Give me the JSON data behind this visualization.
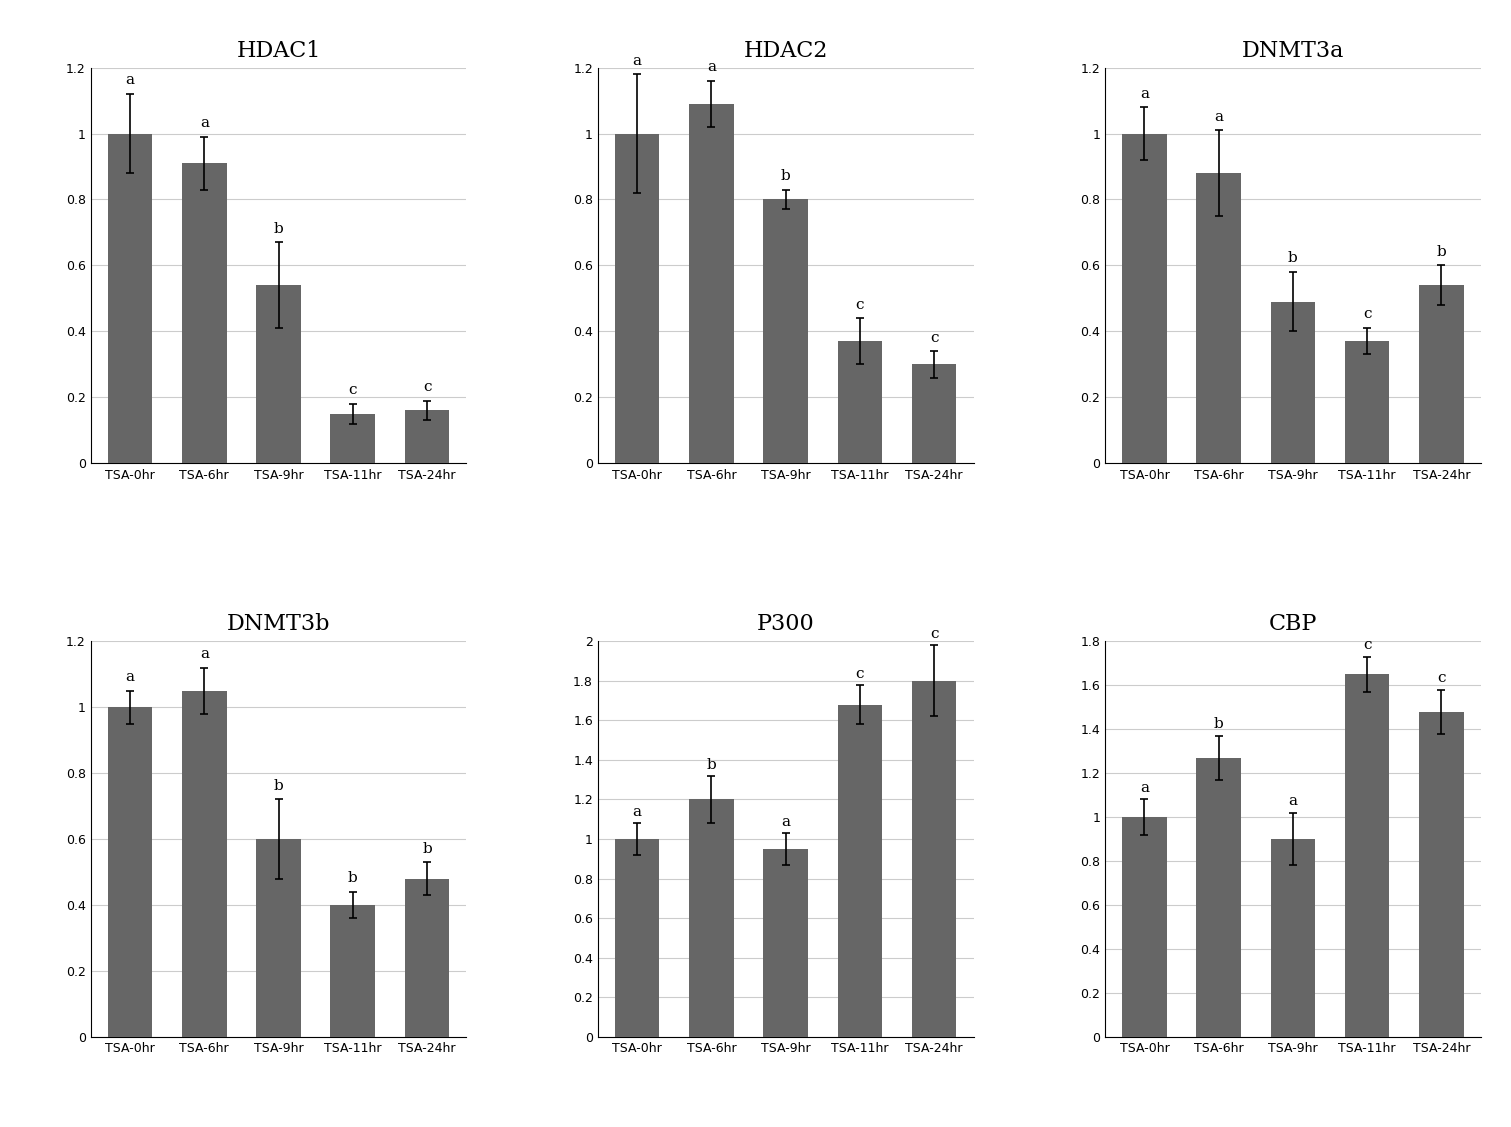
{
  "charts": [
    {
      "title": "HDAC1",
      "values": [
        1.0,
        0.91,
        0.54,
        0.15,
        0.16
      ],
      "errors": [
        0.12,
        0.08,
        0.13,
        0.03,
        0.03
      ],
      "labels": [
        "a",
        "a",
        "b",
        "c",
        "c"
      ],
      "ylim": [
        0,
        1.2
      ],
      "yticks": [
        0,
        0.2,
        0.4,
        0.6,
        0.8,
        1.0,
        1.2
      ]
    },
    {
      "title": "HDAC2",
      "values": [
        1.0,
        1.09,
        0.8,
        0.37,
        0.3
      ],
      "errors": [
        0.18,
        0.07,
        0.03,
        0.07,
        0.04
      ],
      "labels": [
        "a",
        "a",
        "b",
        "c",
        "c"
      ],
      "ylim": [
        0,
        1.2
      ],
      "yticks": [
        0,
        0.2,
        0.4,
        0.6,
        0.8,
        1.0,
        1.2
      ]
    },
    {
      "title": "DNMT3a",
      "values": [
        1.0,
        0.88,
        0.49,
        0.37,
        0.54
      ],
      "errors": [
        0.08,
        0.13,
        0.09,
        0.04,
        0.06
      ],
      "labels": [
        "a",
        "a",
        "b",
        "c",
        "b"
      ],
      "ylim": [
        0,
        1.2
      ],
      "yticks": [
        0,
        0.2,
        0.4,
        0.6,
        0.8,
        1.0,
        1.2
      ]
    },
    {
      "title": "DNMT3b",
      "values": [
        1.0,
        1.05,
        0.6,
        0.4,
        0.48
      ],
      "errors": [
        0.05,
        0.07,
        0.12,
        0.04,
        0.05
      ],
      "labels": [
        "a",
        "a",
        "b",
        "b",
        "b"
      ],
      "ylim": [
        0,
        1.2
      ],
      "yticks": [
        0,
        0.2,
        0.4,
        0.6,
        0.8,
        1.0,
        1.2
      ]
    },
    {
      "title": "P300",
      "values": [
        1.0,
        1.2,
        0.95,
        1.68,
        1.8
      ],
      "errors": [
        0.08,
        0.12,
        0.08,
        0.1,
        0.18
      ],
      "labels": [
        "a",
        "b",
        "a",
        "c",
        "c"
      ],
      "ylim": [
        0,
        2.0
      ],
      "yticks": [
        0,
        0.2,
        0.4,
        0.6,
        0.8,
        1.0,
        1.2,
        1.4,
        1.6,
        1.8,
        2.0
      ]
    },
    {
      "title": "CBP",
      "values": [
        1.0,
        1.27,
        0.9,
        1.65,
        1.48
      ],
      "errors": [
        0.08,
        0.1,
        0.12,
        0.08,
        0.1
      ],
      "labels": [
        "a",
        "b",
        "a",
        "c",
        "c"
      ],
      "ylim": [
        0,
        1.8
      ],
      "yticks": [
        0,
        0.2,
        0.4,
        0.6,
        0.8,
        1.0,
        1.2,
        1.4,
        1.6,
        1.8
      ]
    }
  ],
  "x_categories": [
    "TSA-0hr",
    "TSA-6hr",
    "TSA-9hr",
    "TSA-11hr",
    "TSA-24hr"
  ],
  "bar_color": "#666666",
  "bar_width": 0.6,
  "error_color": "black",
  "label_fontsize": 11,
  "title_fontsize": 16,
  "tick_fontsize": 9,
  "background_color": "#ffffff",
  "grid_color": "#cccccc"
}
